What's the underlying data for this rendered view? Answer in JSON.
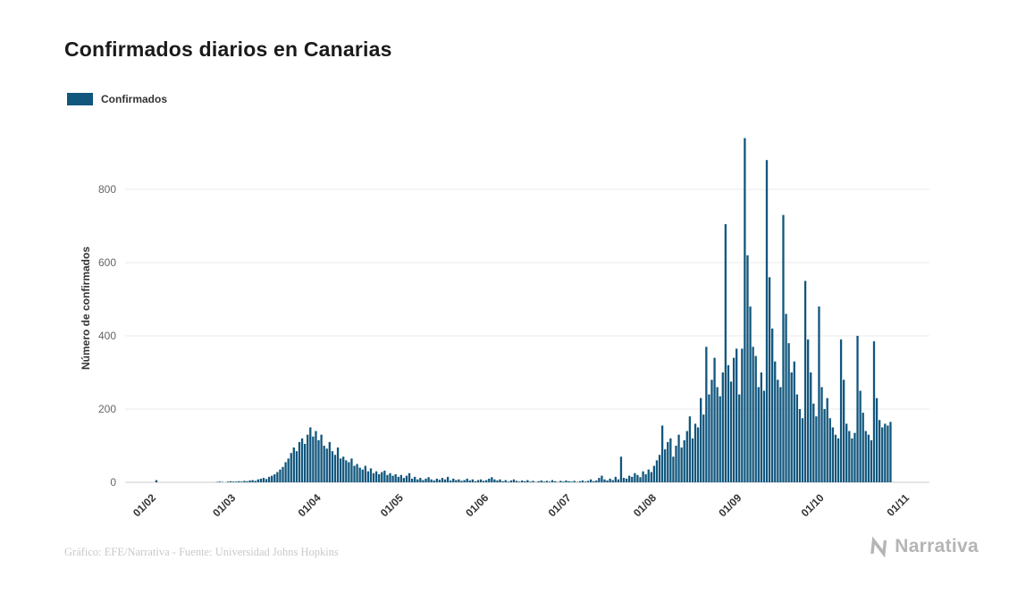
{
  "title": "Confirmados diarios en Canarias",
  "legend": {
    "label": "Confirmados",
    "color": "#11567d"
  },
  "y_axis_title": "Número de confirmados",
  "footer": {
    "credit": "Gráfico: EFE/Narrativa - Fuente: Universidad Johns Hopkins"
  },
  "brand": {
    "name": "Narrativa"
  },
  "chart_data": {
    "type": "bar",
    "title": "Confirmados diarios en Canarias",
    "xlabel": "",
    "ylabel": "Número de confirmados",
    "series_name": "Confirmados",
    "bar_color": "#11567d",
    "grid": true,
    "legend_position": "top-left",
    "x_start_date": "2020-02-01",
    "x_tick_labels": [
      "01/02",
      "01/03",
      "01/04",
      "01/05",
      "01/06",
      "01/07",
      "01/08",
      "01/09",
      "01/10",
      "01/11"
    ],
    "x_tick_day_offsets": [
      0,
      29,
      60,
      90,
      121,
      151,
      182,
      213,
      243,
      274
    ],
    "y_ticks": [
      0,
      200,
      400,
      600,
      800
    ],
    "ylim": [
      0,
      950
    ],
    "values": [
      6,
      0,
      0,
      0,
      0,
      0,
      0,
      0,
      0,
      0,
      0,
      0,
      0,
      0,
      0,
      0,
      0,
      0,
      0,
      0,
      0,
      0,
      1,
      2,
      1,
      0,
      2,
      3,
      2,
      2,
      3,
      2,
      4,
      3,
      5,
      6,
      4,
      8,
      10,
      12,
      9,
      15,
      18,
      22,
      28,
      35,
      42,
      55,
      65,
      80,
      95,
      85,
      110,
      120,
      105,
      130,
      150,
      125,
      140,
      115,
      130,
      100,
      92,
      110,
      85,
      75,
      95,
      65,
      70,
      60,
      55,
      65,
      45,
      50,
      40,
      35,
      45,
      30,
      38,
      25,
      30,
      22,
      28,
      32,
      20,
      25,
      18,
      22,
      15,
      20,
      12,
      18,
      25,
      10,
      15,
      8,
      12,
      6,
      10,
      14,
      8,
      5,
      10,
      7,
      12,
      8,
      15,
      5,
      10,
      6,
      8,
      4,
      6,
      10,
      5,
      8,
      3,
      6,
      8,
      4,
      6,
      10,
      14,
      8,
      5,
      8,
      3,
      6,
      2,
      5,
      8,
      4,
      2,
      5,
      3,
      6,
      2,
      4,
      1,
      3,
      5,
      2,
      4,
      2,
      6,
      3,
      1,
      4,
      2,
      5,
      3,
      2,
      4,
      1,
      3,
      5,
      2,
      4,
      8,
      3,
      5,
      12,
      18,
      8,
      5,
      10,
      6,
      15,
      8,
      70,
      12,
      10,
      18,
      15,
      25,
      20,
      14,
      30,
      22,
      35,
      28,
      45,
      60,
      75,
      155,
      90,
      110,
      120,
      70,
      100,
      130,
      95,
      115,
      140,
      180,
      120,
      160,
      150,
      230,
      185,
      370,
      240,
      280,
      340,
      260,
      235,
      300,
      705,
      320,
      275,
      340,
      365,
      240,
      365,
      940,
      620,
      480,
      370,
      345,
      260,
      300,
      250,
      880,
      560,
      420,
      330,
      280,
      260,
      730,
      460,
      380,
      300,
      330,
      240,
      200,
      175,
      550,
      390,
      300,
      215,
      180,
      480,
      260,
      200,
      230,
      175,
      150,
      130,
      120,
      390,
      280,
      160,
      140,
      120,
      135,
      400,
      250,
      190,
      140,
      130,
      115,
      385,
      230,
      170,
      150,
      160,
      155,
      165
    ]
  }
}
